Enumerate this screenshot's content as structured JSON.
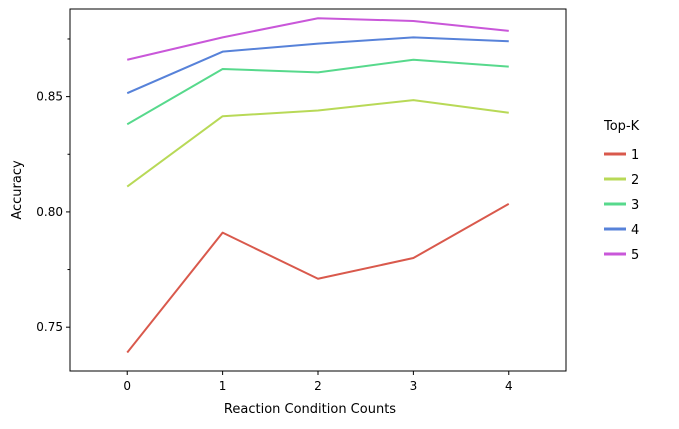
{
  "chart_data": {
    "type": "line",
    "title": "",
    "xlabel": "Reaction Condition Counts",
    "ylabel": "Accuracy",
    "x": [
      0,
      1,
      2,
      3,
      4
    ],
    "xlim": [
      -0.6,
      4.6
    ],
    "ylim": [
      0.731,
      0.888
    ],
    "xticks": [
      "0",
      "1",
      "2",
      "3",
      "4"
    ],
    "yticks": [
      0.75,
      0.8,
      0.85
    ],
    "ytick_labels": [
      "0.75",
      "0.80",
      "0.85"
    ],
    "grid": false,
    "legend": {
      "title": "Top-K",
      "placement": "outside-right"
    },
    "series": [
      {
        "name": "1",
        "color": "#d9594c",
        "values": [
          0.739,
          0.791,
          0.771,
          0.78,
          0.8035
        ]
      },
      {
        "name": "2",
        "color": "#b8d957",
        "values": [
          0.811,
          0.8415,
          0.844,
          0.8485,
          0.843
        ]
      },
      {
        "name": "3",
        "color": "#57d98c",
        "values": [
          0.838,
          0.862,
          0.8605,
          0.866,
          0.863
        ]
      },
      {
        "name": "4",
        "color": "#5782d9",
        "values": [
          0.8515,
          0.8695,
          0.873,
          0.8757,
          0.874
        ]
      },
      {
        "name": "5",
        "color": "#c957d9",
        "values": [
          0.866,
          0.8757,
          0.884,
          0.8828,
          0.8785
        ]
      }
    ]
  }
}
